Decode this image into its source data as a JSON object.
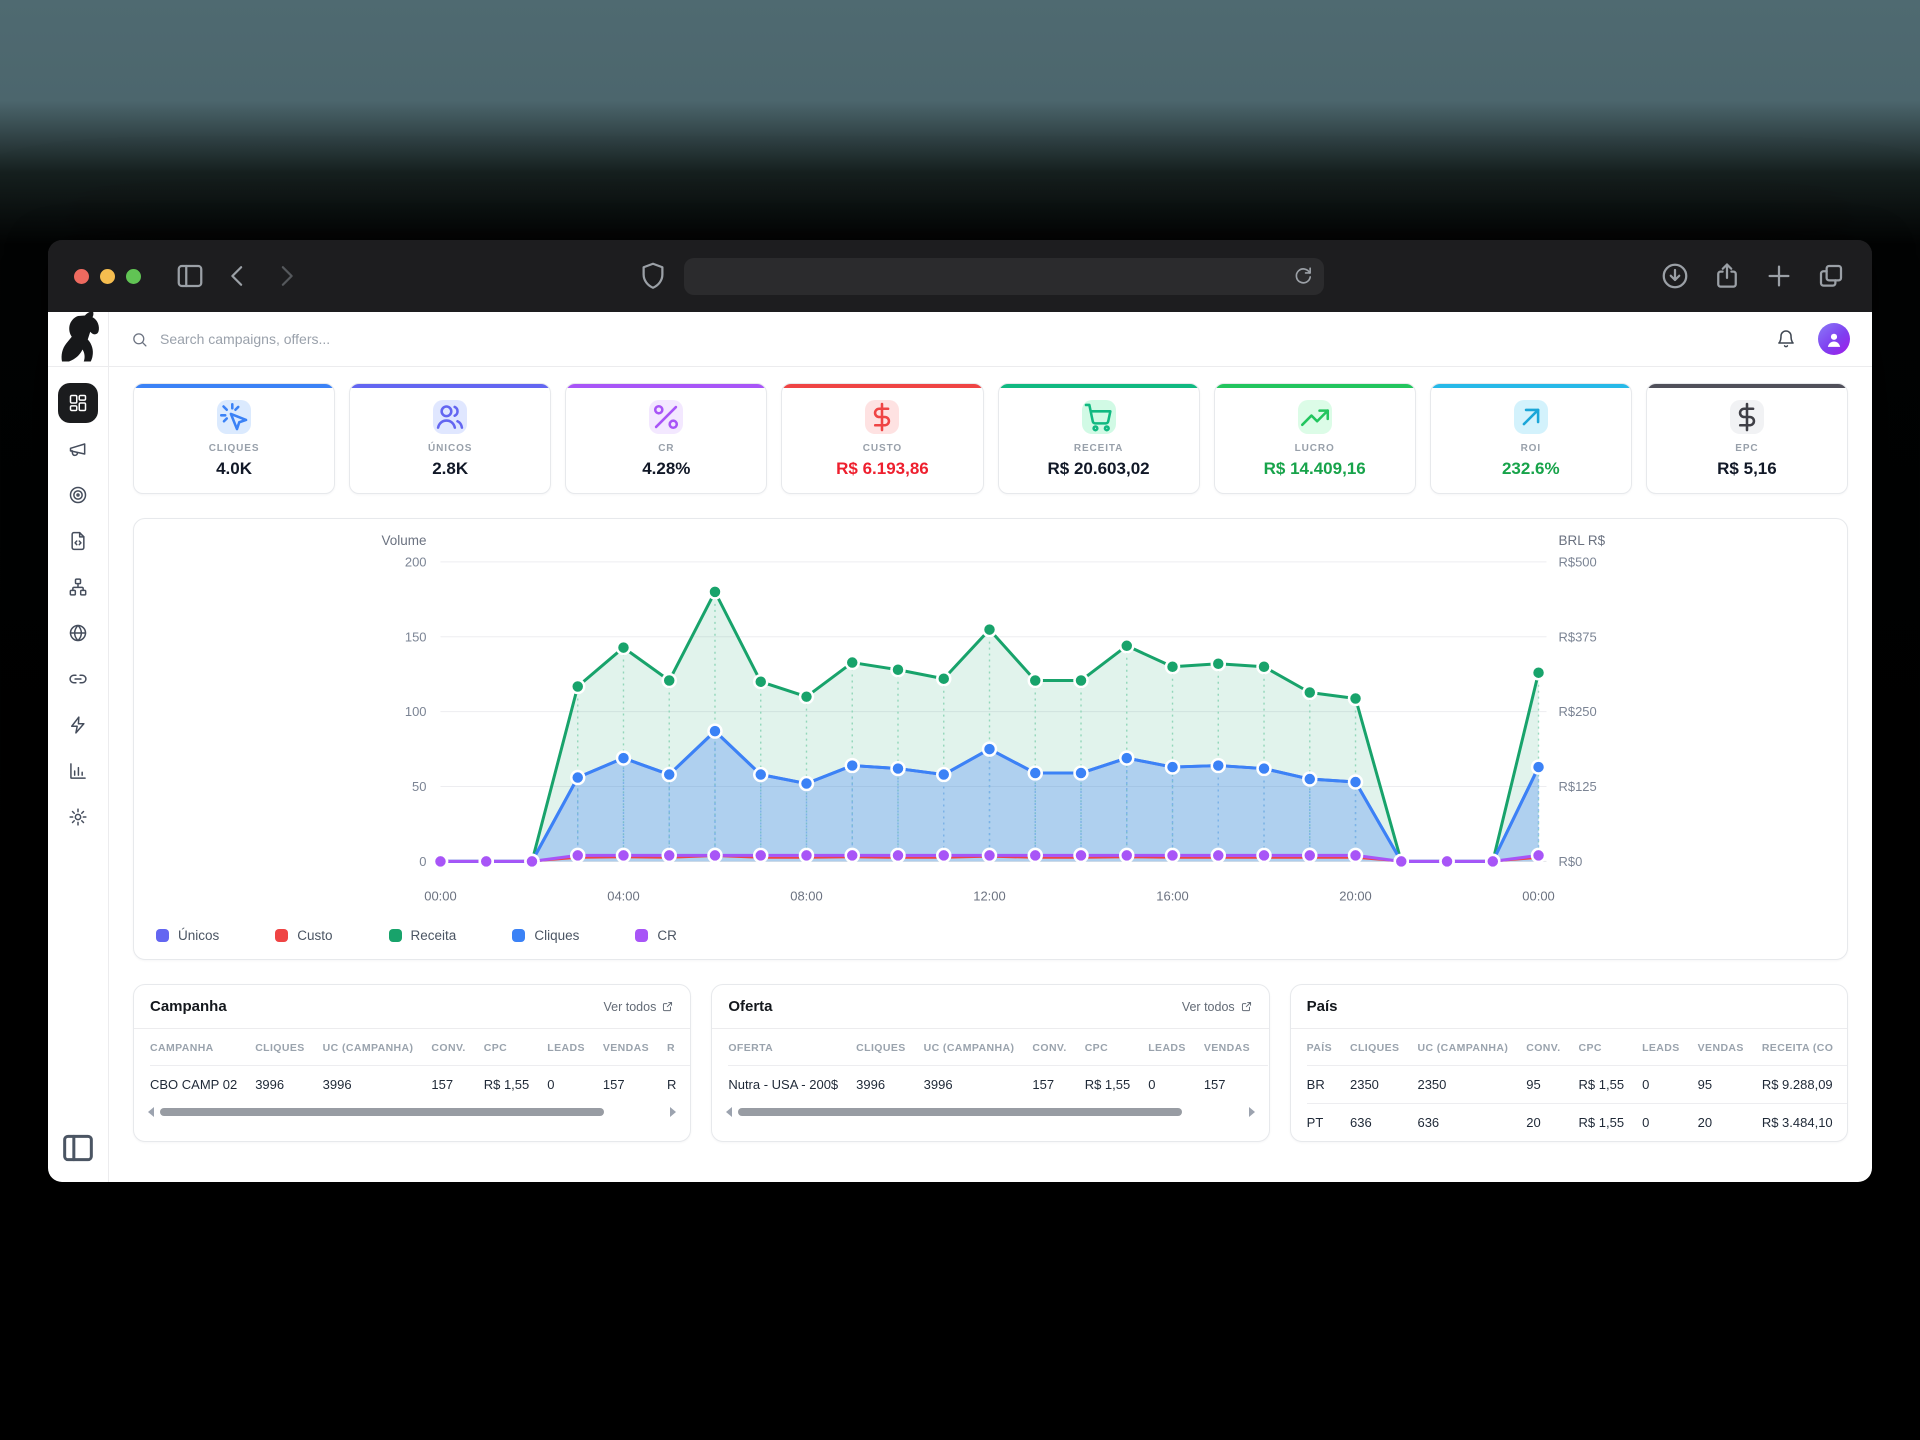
{
  "browser": {
    "traffic_lights": [
      "close",
      "minimize",
      "zoom"
    ],
    "url_value": ""
  },
  "sidebar": {
    "items": [
      {
        "icon": "grid-icon",
        "name": "dashboard",
        "active": true
      },
      {
        "icon": "megaphone-icon",
        "name": "campaigns",
        "active": false
      },
      {
        "icon": "target-icon",
        "name": "offers",
        "active": false
      },
      {
        "icon": "file-code-icon",
        "name": "landers",
        "active": false
      },
      {
        "icon": "sitemap-icon",
        "name": "flows",
        "active": false
      },
      {
        "icon": "globe-icon",
        "name": "domains",
        "active": false
      },
      {
        "icon": "link-icon",
        "name": "links",
        "active": false
      },
      {
        "icon": "zap-icon",
        "name": "automation",
        "active": false
      },
      {
        "icon": "bar-chart-icon",
        "name": "reports",
        "active": false
      },
      {
        "icon": "gear-icon",
        "name": "settings",
        "active": false
      }
    ]
  },
  "topbar": {
    "search_placeholder": "Search campaigns, offers..."
  },
  "kpis": [
    {
      "label": "CLIQUES",
      "value": "4.0K",
      "accent": "#3b82f6",
      "chip_bg": "#dbeafe",
      "icon": "mouse-click-icon",
      "icon_color": "#3b82f6",
      "value_color": "#111827"
    },
    {
      "label": "ÚNICOS",
      "value": "2.8K",
      "accent": "#6366f1",
      "chip_bg": "#e0e7ff",
      "icon": "users-icon",
      "icon_color": "#6366f1",
      "value_color": "#111827"
    },
    {
      "label": "CR",
      "value": "4.28%",
      "accent": "#a855f7",
      "chip_bg": "#f3e8ff",
      "icon": "percent-icon",
      "icon_color": "#a855f7",
      "value_color": "#111827"
    },
    {
      "label": "CUSTO",
      "value": "R$ 6.193,86",
      "accent": "#ef4444",
      "chip_bg": "#fee2e2",
      "icon": "dollar-icon",
      "icon_color": "#ef4444",
      "value_color": "#ee1f2e"
    },
    {
      "label": "RECEITA",
      "value": "R$ 20.603,02",
      "accent": "#10b981",
      "chip_bg": "#d1fae5",
      "icon": "cart-icon",
      "icon_color": "#10b981",
      "value_color": "#111827"
    },
    {
      "label": "LUCRO",
      "value": "R$ 14.409,16",
      "accent": "#22c55e",
      "chip_bg": "#dcfce7",
      "icon": "trend-up-icon",
      "icon_color": "#22c55e",
      "value_color": "#17a34a"
    },
    {
      "label": "ROI",
      "value": "232.6%",
      "accent": "#27b9e8",
      "chip_bg": "#d3f2fc",
      "icon": "arrow-up-right-icon",
      "icon_color": "#1ba6d8",
      "value_color": "#17a34a"
    },
    {
      "label": "EPC",
      "value": "R$ 5,16",
      "accent": "#50505a",
      "chip_bg": "#f1f2f4",
      "icon": "dollar-icon",
      "icon_color": "#3f3f46",
      "value_color": "#111827"
    }
  ],
  "chart_data": {
    "type": "area",
    "x": [
      "00:00",
      "01:00",
      "02:00",
      "03:00",
      "04:00",
      "05:00",
      "06:00",
      "07:00",
      "08:00",
      "09:00",
      "10:00",
      "11:00",
      "12:00",
      "13:00",
      "14:00",
      "15:00",
      "16:00",
      "17:00",
      "18:00",
      "19:00",
      "20:00",
      "21:00",
      "22:00",
      "23:00",
      "00:00"
    ],
    "x_ticks_shown": [
      "00:00",
      "04:00",
      "08:00",
      "12:00",
      "16:00",
      "20:00",
      "00:00"
    ],
    "y_left": {
      "title": "Volume",
      "range": [
        0,
        200
      ],
      "ticks": [
        0,
        50,
        100,
        150,
        200
      ]
    },
    "y_right": {
      "title": "BRL R$",
      "range": [
        0,
        500
      ],
      "ticks": [
        "R$0",
        "R$125",
        "R$250",
        "R$375",
        "R$500"
      ]
    },
    "grid": true,
    "legend_position": "bottom",
    "series": [
      {
        "name": "Únicos",
        "color": "#6366f1",
        "axis": "left",
        "fill": false,
        "values": [
          0,
          0,
          0,
          56,
          69,
          58,
          87,
          58,
          52,
          64,
          62,
          58,
          75,
          59,
          59,
          69,
          63,
          64,
          62,
          55,
          53,
          0,
          0,
          0,
          63
        ]
      },
      {
        "name": "Custo",
        "color": "#ef4444",
        "axis": "right",
        "fill": false,
        "values": [
          0,
          0,
          0,
          6,
          7,
          6,
          9,
          6,
          6,
          7,
          6,
          6,
          8,
          6,
          6,
          7,
          6,
          6,
          6,
          6,
          6,
          0,
          0,
          0,
          6
        ]
      },
      {
        "name": "Receita",
        "color": "#18a36b",
        "axis": "right",
        "fill": true,
        "values": [
          0,
          0,
          0,
          292,
          357,
          302,
          450,
          300,
          275,
          332,
          320,
          305,
          387,
          302,
          302,
          360,
          325,
          330,
          325,
          282,
          272,
          0,
          0,
          0,
          315
        ]
      },
      {
        "name": "Cliques",
        "color": "#3b82f6",
        "axis": "left",
        "fill": true,
        "values": [
          0,
          0,
          0,
          56,
          69,
          58,
          87,
          58,
          52,
          64,
          62,
          58,
          75,
          59,
          59,
          69,
          63,
          64,
          62,
          55,
          53,
          0,
          0,
          0,
          63
        ]
      },
      {
        "name": "CR",
        "color": "#a855f7",
        "axis": "left",
        "fill": false,
        "values": [
          0,
          0,
          0,
          4,
          4,
          4,
          4,
          4,
          4,
          4,
          4,
          4,
          4,
          4,
          4,
          4,
          4,
          4,
          4,
          4,
          4,
          0,
          0,
          0,
          4
        ]
      }
    ]
  },
  "tables": [
    {
      "title": "Campanha",
      "link_label": "Ver todos",
      "headers": [
        "CAMPANHA",
        "CLIQUES",
        "UC (CAMPANHA)",
        "CONV.",
        "CPC",
        "LEADS",
        "VENDAS",
        "R"
      ],
      "rows": [
        [
          "CBO CAMP 02",
          "3996",
          "3996",
          "157",
          "R$ 1,55",
          "0",
          "157",
          "R"
        ]
      ],
      "scrollbar": true
    },
    {
      "title": "Oferta",
      "link_label": "Ver todos",
      "headers": [
        "OFERTA",
        "CLIQUES",
        "UC (CAMPANHA)",
        "CONV.",
        "CPC",
        "LEADS",
        "VENDAS"
      ],
      "rows": [
        [
          "Nutra - USA - 200$",
          "3996",
          "3996",
          "157",
          "R$ 1,55",
          "0",
          "157"
        ]
      ],
      "scrollbar": true
    },
    {
      "title": "País",
      "link_label": "",
      "headers": [
        "PAÍS",
        "CLIQUES",
        "UC (CAMPANHA)",
        "CONV.",
        "CPC",
        "LEADS",
        "VENDAS",
        "RECEITA (CO"
      ],
      "rows": [
        [
          "BR",
          "2350",
          "2350",
          "95",
          "R$ 1,55",
          "0",
          "95",
          "R$ 9.288,09"
        ],
        [
          "PT",
          "636",
          "636",
          "20",
          "R$ 1,55",
          "0",
          "20",
          "R$ 3.484,10"
        ]
      ],
      "scrollbar": false
    }
  ]
}
